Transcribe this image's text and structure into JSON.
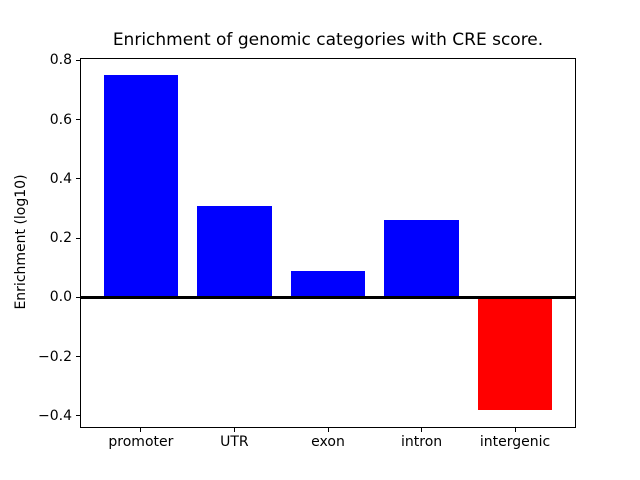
{
  "figure": {
    "background": "#ffffff",
    "axis_color": "#000000",
    "text_color": "#000000"
  },
  "chart_data": {
    "type": "bar",
    "title": "Enrichment of genomic categories with CRE score.",
    "xlabel": "",
    "ylabel": "Enrichment (log10)",
    "categories": [
      "promoter",
      "UTR",
      "exon",
      "intron",
      "intergenic"
    ],
    "values": [
      0.75,
      0.31,
      0.09,
      0.26,
      -0.38
    ],
    "bar_colors": [
      "#0000ff",
      "#0000ff",
      "#0000ff",
      "#0000ff",
      "#ff0000"
    ],
    "bar_width_units": 0.8,
    "xlim": [
      -0.64,
      4.64
    ],
    "ylim": [
      -0.4365,
      0.8065
    ],
    "yticks": [
      -0.4,
      -0.2,
      0.0,
      0.2,
      0.4,
      0.6,
      0.8
    ],
    "ytick_labels": [
      "−0.4",
      "−0.2",
      "0.0",
      "0.2",
      "0.4",
      "0.6",
      "0.8"
    ],
    "grid": false,
    "legend": "none",
    "zero_line": {
      "show": true,
      "color": "#000000",
      "thickness_px": 2.5
    }
  }
}
